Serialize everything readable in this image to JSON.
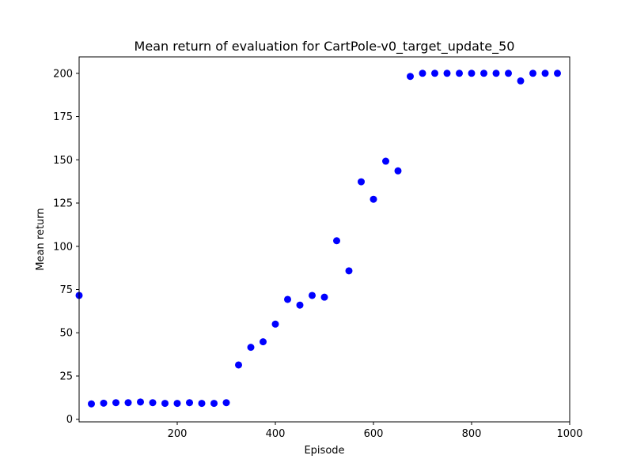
{
  "chart_data": {
    "type": "scatter",
    "title": "Mean return of evaluation for CartPole-v0_target_update_50",
    "xlabel": "Episode",
    "ylabel": "Mean return",
    "xlim": [
      0,
      1000
    ],
    "ylim": [
      -1.5,
      209.5
    ],
    "x_ticks": [
      200,
      400,
      600,
      800,
      1000
    ],
    "y_ticks": [
      0,
      25,
      50,
      75,
      100,
      125,
      150,
      175,
      200
    ],
    "grid": false,
    "series": [
      {
        "color": "#0000ff",
        "marker": "circle",
        "x": [
          0,
          25,
          50,
          75,
          100,
          125,
          150,
          175,
          200,
          225,
          250,
          275,
          300,
          325,
          350,
          375,
          400,
          425,
          450,
          475,
          500,
          525,
          550,
          575,
          600,
          625,
          650,
          675,
          700,
          725,
          750,
          775,
          800,
          825,
          850,
          875,
          900,
          925,
          950,
          975
        ],
        "y": [
          71.6,
          8.9,
          9.3,
          9.6,
          9.6,
          10.0,
          9.6,
          9.2,
          9.2,
          9.6,
          9.2,
          9.2,
          9.6,
          31.4,
          41.6,
          44.8,
          55.0,
          69.3,
          66.0,
          71.6,
          70.6,
          103.2,
          85.8,
          137.3,
          127.2,
          149.2,
          143.6,
          198.2,
          200.0,
          200.0,
          200.0,
          200.0,
          200.0,
          200.0,
          200.0,
          200.0,
          195.6,
          200.0,
          200.0,
          200.0
        ]
      }
    ]
  }
}
